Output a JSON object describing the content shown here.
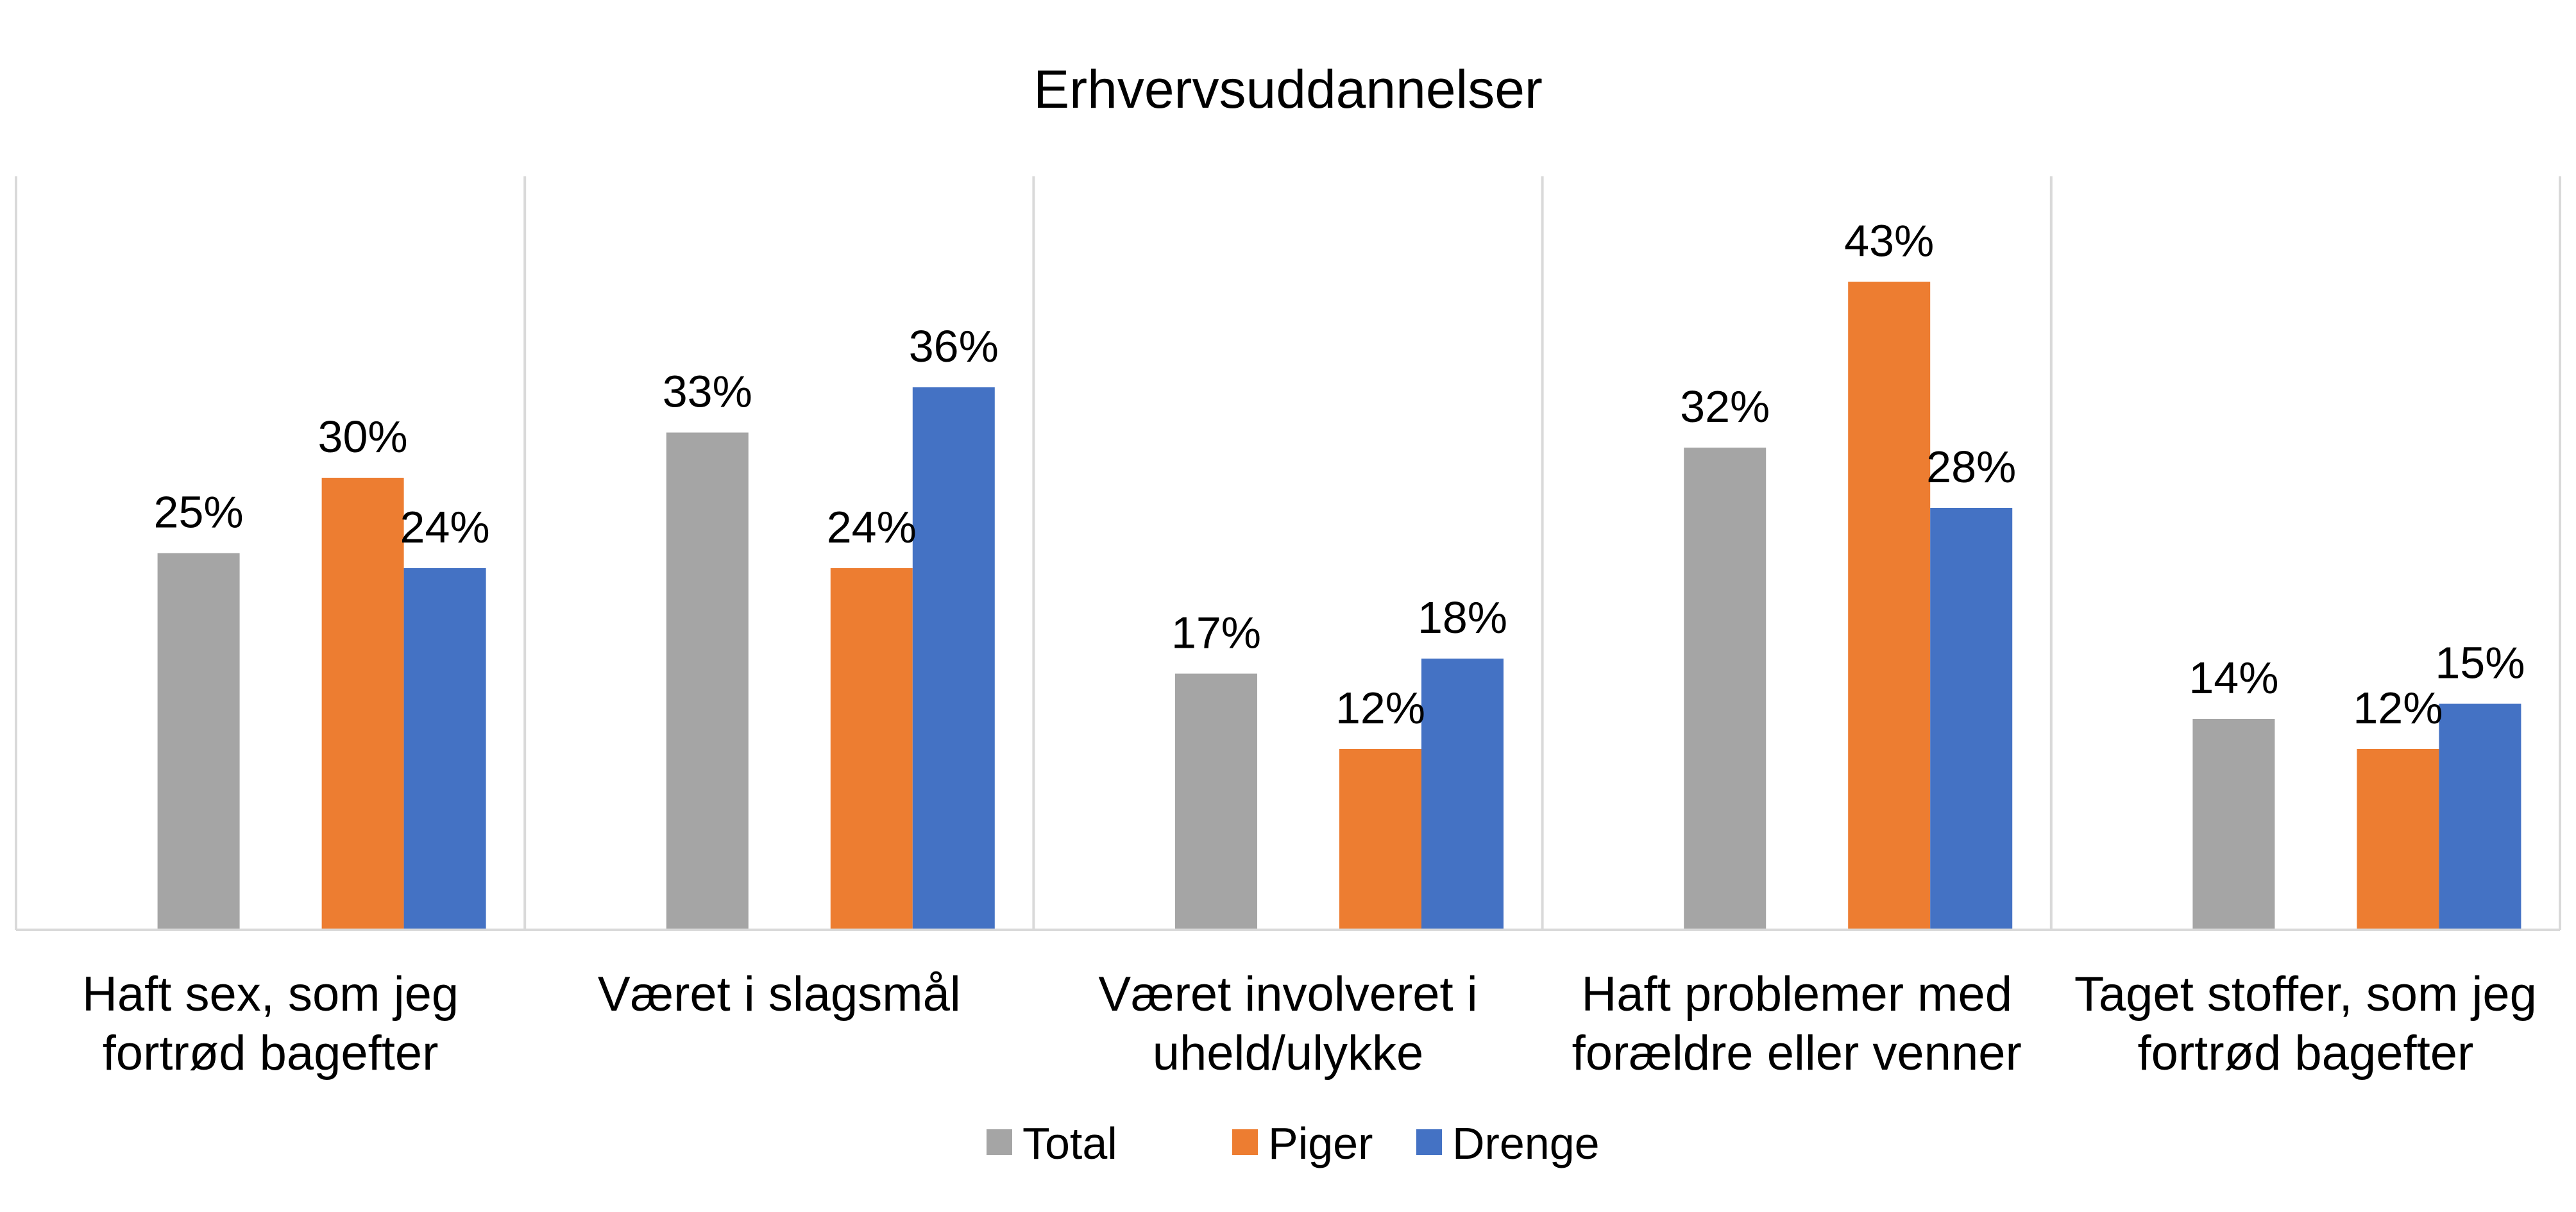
{
  "chart_data": {
    "type": "bar",
    "title": "Erhvervsuddannelser",
    "categories": [
      [
        "Haft sex, som jeg",
        "fortrød bagefter"
      ],
      [
        "Været i slagsmål"
      ],
      [
        "Været involveret i",
        "uheld/ulykke"
      ],
      [
        "Haft problemer med",
        "forældre eller venner"
      ],
      [
        "Taget stoffer, som jeg",
        "fortrød bagefter"
      ]
    ],
    "series": [
      {
        "name": "Total",
        "color": "#A5A5A5",
        "values": [
          25,
          33,
          17,
          32,
          14
        ],
        "labels": [
          "25%",
          "33%",
          "17%",
          "32%",
          "14%"
        ]
      },
      {
        "name": "Piger",
        "color": "#ED7D31",
        "values": [
          30,
          24,
          12,
          43,
          12
        ],
        "labels": [
          "30%",
          "24%",
          "12%",
          "43%",
          "12%"
        ]
      },
      {
        "name": "Drenge",
        "color": "#4472C4",
        "values": [
          24,
          36,
          18,
          28,
          15
        ],
        "labels": [
          "24%",
          "36%",
          "18%",
          "28%",
          "15%"
        ]
      }
    ],
    "ylim": [
      0,
      50
    ],
    "grid": false,
    "category_separators": true,
    "legend": "bottom"
  }
}
